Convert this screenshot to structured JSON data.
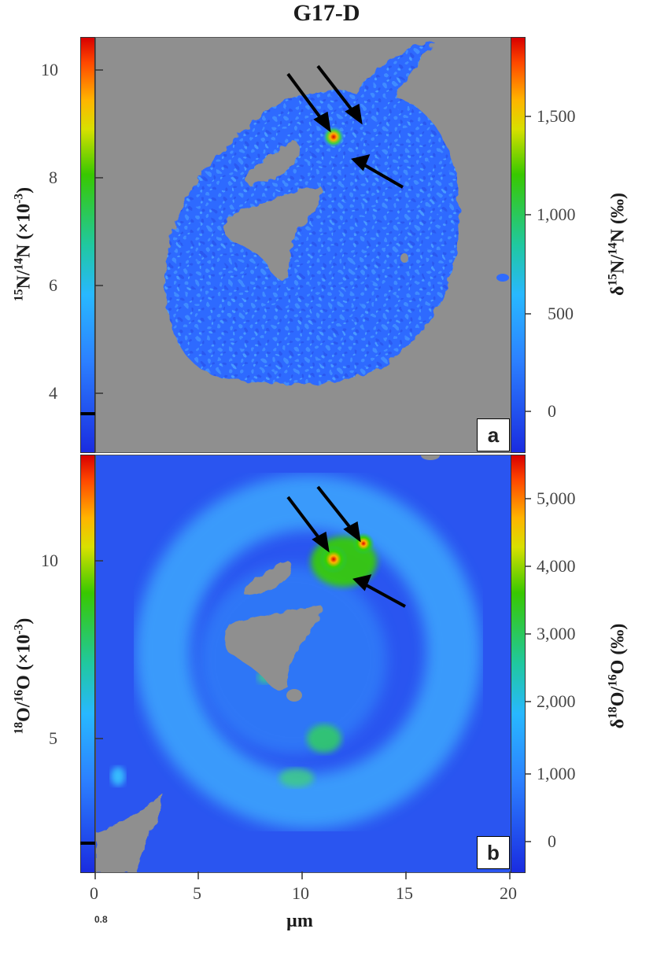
{
  "figure": {
    "title": "G17-D",
    "colors": {
      "background_mask": "#8f8f8f",
      "low": "#1e3cff",
      "mid": "#28c8ff",
      "high": "#d80000"
    }
  },
  "panel_a": {
    "badge": "a",
    "left_ticks": [
      "10",
      "8",
      "6",
      "4"
    ],
    "left_title_pre": "15",
    "left_title_mid": "N/",
    "left_title_sup2": "14",
    "left_title_post": "N (×10",
    "left_title_exp": "-3",
    "left_title_end": ")",
    "right_ticks": [
      "1,500",
      "1,000",
      "500",
      "0"
    ],
    "right_title_delta": "δ",
    "right_title_sup1": "15",
    "right_title_mid": "N/",
    "right_title_sup2": "14",
    "right_title_end": "N (‰)"
  },
  "panel_b": {
    "badge": "b",
    "left_ticks": [
      "10",
      "5"
    ],
    "left_title_pre": "18",
    "left_title_mid": "O/",
    "left_title_sup2": "16",
    "left_title_post": "O (×10",
    "left_title_exp": "-3",
    "left_title_end": ")",
    "right_ticks": [
      "5,000",
      "4,000",
      "3,000",
      "2,000",
      "1,000",
      "0"
    ],
    "right_title_delta": "δ",
    "right_title_sup1": "18",
    "right_title_mid": "O/",
    "right_title_sup2": "16",
    "right_title_end": "O (‰)"
  },
  "x_axis": {
    "ticks": [
      "0",
      "5",
      "10",
      "15",
      "20"
    ],
    "label": "µm",
    "stray": "0.8"
  }
}
